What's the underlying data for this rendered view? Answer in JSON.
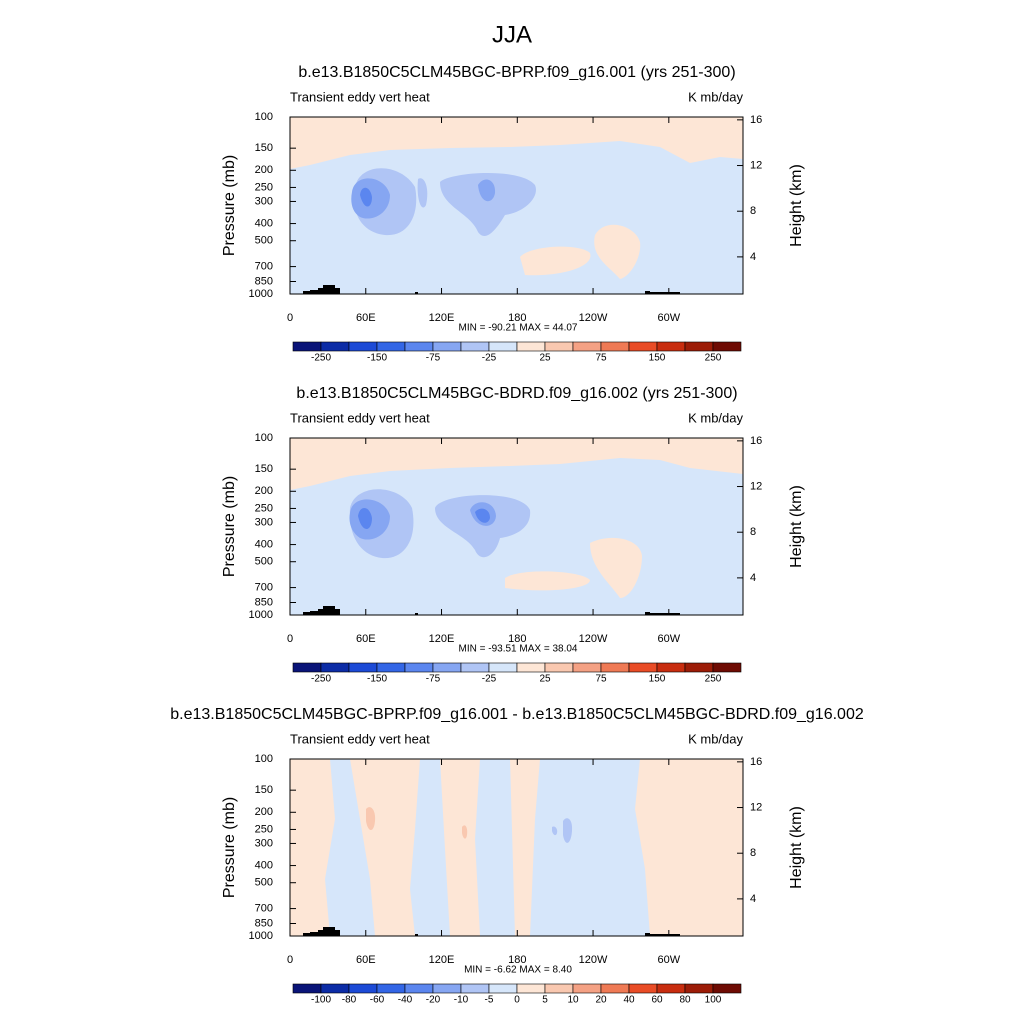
{
  "title": "JJA",
  "chart_data": [
    {
      "type": "contour",
      "title": "b.e13.B1850C5CLM45BGC-BPRP.f09_g16.001 (yrs 251-300)",
      "subtitle_left": "Transient eddy vert heat",
      "subtitle_right": "K mb/day",
      "ylabel": "Pressure (mb)",
      "y2label": "Height (km)",
      "xlim": [
        0,
        358.75
      ],
      "xticks": [
        0,
        {
          "value": 60,
          "label": "60E"
        },
        {
          "value": 120,
          "label": "120E"
        },
        180,
        {
          "value": 240,
          "label": "120W"
        },
        {
          "value": 300,
          "label": "60W"
        }
      ],
      "ylim": [
        1000,
        100
      ],
      "ylog": true,
      "yticks": [
        100,
        150,
        200,
        250,
        300,
        400,
        500,
        700,
        850,
        1000
      ],
      "y2lim": [
        0.75,
        16.25
      ],
      "y2ticks": [
        4,
        8,
        12,
        16
      ],
      "stats_label": "MIN = -90.21  MAX =  44.07",
      "colorbar": {
        "levels": [
          -250,
          null,
          -150,
          null,
          -75,
          null,
          -25,
          null,
          25,
          null,
          75,
          null,
          150,
          null,
          250
        ],
        "colors": [
          "#0a1478",
          "#0c2ca6",
          "#1c4ad6",
          "#3366e6",
          "#5b86ef",
          "#86a6f2",
          "#b0c5f5",
          "#d6e6fa",
          "#fde6d6",
          "#f9c8b0",
          "#f4a184",
          "#ef7a55",
          "#e94c26",
          "#c82d0f",
          "#9c1c07",
          "#6e0b03"
        ]
      }
    },
    {
      "type": "contour",
      "title": "b.e13.B1850C5CLM45BGC-BDRD.f09_g16.002 (yrs 251-300)",
      "subtitle_left": "Transient eddy vert heat",
      "subtitle_right": "K mb/day",
      "ylabel": "Pressure (mb)",
      "y2label": "Height (km)",
      "xlim": [
        0,
        358.75
      ],
      "xticks": [
        0,
        {
          "value": 60,
          "label": "60E"
        },
        {
          "value": 120,
          "label": "120E"
        },
        180,
        {
          "value": 240,
          "label": "120W"
        },
        {
          "value": 300,
          "label": "60W"
        }
      ],
      "ylim": [
        1000,
        100
      ],
      "ylog": true,
      "yticks": [
        100,
        150,
        200,
        250,
        300,
        400,
        500,
        700,
        850,
        1000
      ],
      "y2lim": [
        0.75,
        16.25
      ],
      "y2ticks": [
        4,
        8,
        12,
        16
      ],
      "stats_label": "MIN = -93.51  MAX =  38.04",
      "colorbar": {
        "levels": [
          -250,
          null,
          -150,
          null,
          -75,
          null,
          -25,
          null,
          25,
          null,
          75,
          null,
          150,
          null,
          250
        ],
        "colors": [
          "#0a1478",
          "#0c2ca6",
          "#1c4ad6",
          "#3366e6",
          "#5b86ef",
          "#86a6f2",
          "#b0c5f5",
          "#d6e6fa",
          "#fde6d6",
          "#f9c8b0",
          "#f4a184",
          "#ef7a55",
          "#e94c26",
          "#c82d0f",
          "#9c1c07",
          "#6e0b03"
        ]
      }
    },
    {
      "type": "contour",
      "title": "b.e13.B1850C5CLM45BGC-BPRP.f09_g16.001 - b.e13.B1850C5CLM45BGC-BDRD.f09_g16.002",
      "subtitle_left": "Transient eddy vert heat",
      "subtitle_right": "K mb/day",
      "ylabel": "Pressure (mb)",
      "y2label": "Height (km)",
      "xlim": [
        0,
        358.75
      ],
      "xticks": [
        0,
        {
          "value": 60,
          "label": "60E"
        },
        {
          "value": 120,
          "label": "120E"
        },
        180,
        {
          "value": 240,
          "label": "120W"
        },
        {
          "value": 300,
          "label": "60W"
        }
      ],
      "ylim": [
        1000,
        100
      ],
      "ylog": true,
      "yticks": [
        100,
        150,
        200,
        250,
        300,
        400,
        500,
        700,
        850,
        1000
      ],
      "y2lim": [
        0.75,
        16.25
      ],
      "y2ticks": [
        4,
        8,
        12,
        16
      ],
      "stats_label": "MIN =  -6.62  MAX =   8.40",
      "colorbar": {
        "levels": [
          -100,
          -80,
          -60,
          -40,
          -20,
          -10,
          -5,
          0,
          5,
          10,
          20,
          40,
          60,
          80,
          100
        ],
        "colors": [
          "#0a1478",
          "#0c2ca6",
          "#1c4ad6",
          "#3366e6",
          "#5b86ef",
          "#86a6f2",
          "#b0c5f5",
          "#d6e6fa",
          "#fde6d6",
          "#f9c8b0",
          "#f4a184",
          "#ef7a55",
          "#e94c26",
          "#c82d0f",
          "#9c1c07",
          "#6e0b03"
        ]
      }
    }
  ]
}
